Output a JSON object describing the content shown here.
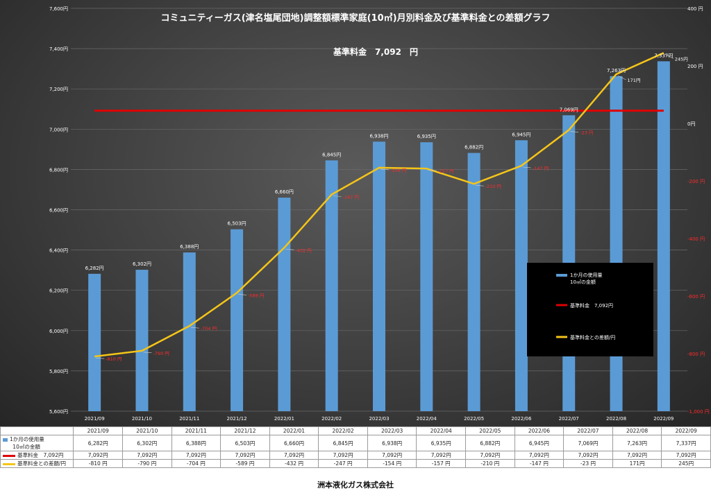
{
  "chart_data": {
    "type": "bar",
    "title": "コミュニティーガス(津名塩尾団地)調整額標準家庭(10㎥)月別料金及び基準料金との差額グラフ",
    "annotation": "基準料金　7,092　円",
    "categories": [
      "2021/09",
      "2021/10",
      "2021/11",
      "2021/12",
      "2022/01",
      "2022/02",
      "2022/03",
      "2022/04",
      "2022/05",
      "2022/06",
      "2022/07",
      "2022/08",
      "2022/09"
    ],
    "series": [
      {
        "name": "1か月の使用量\n10㎥の金額",
        "type": "bar",
        "axis": "left",
        "color": "#5b9bd5",
        "values": [
          6282,
          6302,
          6388,
          6503,
          6660,
          6845,
          6938,
          6935,
          6882,
          6945,
          7069,
          7263,
          7337
        ]
      },
      {
        "name": "基準料金　7,092円",
        "type": "line",
        "axis": "left",
        "color": "#e00000",
        "values": [
          7092,
          7092,
          7092,
          7092,
          7092,
          7092,
          7092,
          7092,
          7092,
          7092,
          7092,
          7092,
          7092
        ]
      },
      {
        "name": "基準料金との差額/円",
        "type": "line",
        "axis": "right",
        "color": "#f5c518",
        "values": [
          -810,
          -790,
          -704,
          -589,
          -432,
          -247,
          -154,
          -157,
          -210,
          -147,
          -23,
          171,
          245
        ]
      }
    ],
    "bar_labels": [
      "6,282円",
      "6,302円",
      "6,388円",
      "6,503円",
      "6,660円",
      "6,845円",
      "6,938円",
      "6,935円",
      "6,882円",
      "6,945円",
      "7,069円",
      "7,263円",
      "7,337円"
    ],
    "diff_labels": [
      "-810 円",
      "-790 円",
      "-704 円",
      "-589 円",
      "-432 円",
      "-247 円",
      "-154 円",
      "-157 円",
      "-210 円",
      "-147 円",
      "-23 円",
      "171円",
      "245円"
    ],
    "ylim": [
      5600,
      7600
    ],
    "y_ticks": [
      "5,600円",
      "5,800円",
      "6,000円",
      "6,200円",
      "6,400円",
      "6,600円",
      "6,800円",
      "7,000円",
      "7,200円",
      "7,400円",
      "7,600円"
    ],
    "y2lim": [
      -1000,
      400
    ],
    "y2_ticks": [
      "-1,000 円",
      "-800 円",
      "-600 円",
      "-400 円",
      "-200 円",
      "0円",
      "200 円",
      "400 円"
    ],
    "legend_position": "right",
    "grid": true
  },
  "table": {
    "rows": [
      {
        "label": "1か月の使用量\n10㎥の金額",
        "key": "bar",
        "values": [
          "6,282円",
          "6,302円",
          "6,388円",
          "6,503円",
          "6,660円",
          "6,845円",
          "6,938円",
          "6,935円",
          "6,882円",
          "6,945円",
          "7,069円",
          "7,263円",
          "7,337円"
        ]
      },
      {
        "label": "基準料金　7,092円",
        "key": "red",
        "values": [
          "7,092円",
          "7,092円",
          "7,092円",
          "7,092円",
          "7,092円",
          "7,092円",
          "7,092円",
          "7,092円",
          "7,092円",
          "7,092円",
          "7,092円",
          "7,092円",
          "7,092円"
        ]
      },
      {
        "label": "基準料金との差額/円",
        "key": "yellow",
        "values": [
          "-810 円",
          "-790 円",
          "-704 円",
          "-589 円",
          "-432 円",
          "-247 円",
          "-154 円",
          "-157 円",
          "-210 円",
          "-147 円",
          "-23 円",
          "171円",
          "245円"
        ]
      }
    ]
  },
  "footer": "洲本液化ガス株式会社"
}
